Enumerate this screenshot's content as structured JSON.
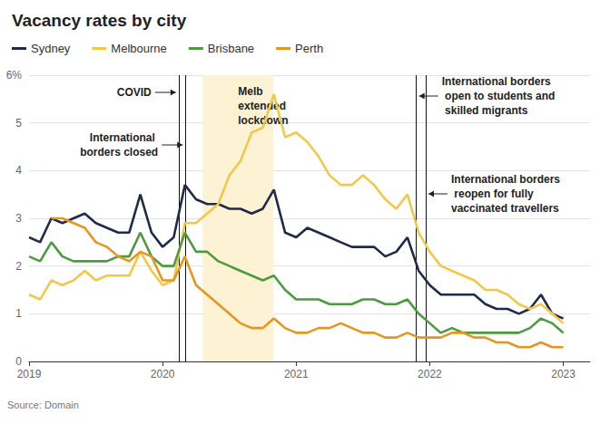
{
  "chart_data": {
    "type": "line",
    "title": "Vacancy rates by city",
    "source": "Source: Domain",
    "x": [
      2019,
      2019.083,
      2019.167,
      2019.25,
      2019.333,
      2019.417,
      2019.5,
      2019.583,
      2019.667,
      2019.75,
      2019.833,
      2019.917,
      2020,
      2020.083,
      2020.167,
      2020.25,
      2020.333,
      2020.417,
      2020.5,
      2020.583,
      2020.667,
      2020.75,
      2020.833,
      2020.917,
      2021,
      2021.083,
      2021.167,
      2021.25,
      2021.333,
      2021.417,
      2021.5,
      2021.583,
      2021.667,
      2021.75,
      2021.833,
      2021.917,
      2022,
      2022.083,
      2022.167,
      2022.25,
      2022.333,
      2022.417,
      2022.5,
      2022.583,
      2022.667,
      2022.75,
      2022.833,
      2022.917,
      2023
    ],
    "series": [
      {
        "name": "Sydney",
        "color": "#1f2a4d",
        "values": [
          2.6,
          2.5,
          3.0,
          2.9,
          3.0,
          3.1,
          2.9,
          2.8,
          2.7,
          2.7,
          3.5,
          2.7,
          2.4,
          2.6,
          3.7,
          3.4,
          3.3,
          3.3,
          3.2,
          3.2,
          3.1,
          3.2,
          3.6,
          2.7,
          2.6,
          2.8,
          2.7,
          2.6,
          2.5,
          2.4,
          2.4,
          2.4,
          2.2,
          2.3,
          2.6,
          1.9,
          1.6,
          1.4,
          1.4,
          1.4,
          1.4,
          1.2,
          1.1,
          1.1,
          1.0,
          1.1,
          1.4,
          1.0,
          0.9
        ]
      },
      {
        "name": "Melbourne",
        "color": "#f2c84b",
        "values": [
          1.4,
          1.3,
          1.7,
          1.6,
          1.7,
          1.9,
          1.7,
          1.8,
          1.8,
          1.8,
          2.3,
          1.9,
          1.6,
          1.7,
          2.9,
          2.9,
          3.1,
          3.3,
          3.9,
          4.2,
          4.8,
          4.9,
          5.6,
          4.7,
          4.8,
          4.6,
          4.3,
          3.9,
          3.7,
          3.7,
          3.9,
          3.7,
          3.4,
          3.2,
          3.5,
          2.7,
          2.3,
          2.0,
          1.9,
          1.8,
          1.7,
          1.5,
          1.5,
          1.4,
          1.2,
          1.1,
          1.2,
          1.0,
          0.8
        ]
      },
      {
        "name": "Brisbane",
        "color": "#4b9b3f",
        "values": [
          2.2,
          2.1,
          2.5,
          2.2,
          2.1,
          2.1,
          2.1,
          2.1,
          2.2,
          2.2,
          2.7,
          2.2,
          2.0,
          2.0,
          2.7,
          2.3,
          2.3,
          2.1,
          2.0,
          1.9,
          1.8,
          1.7,
          1.8,
          1.5,
          1.3,
          1.3,
          1.3,
          1.2,
          1.2,
          1.2,
          1.3,
          1.3,
          1.2,
          1.2,
          1.3,
          1.0,
          0.8,
          0.6,
          0.7,
          0.6,
          0.6,
          0.6,
          0.6,
          0.6,
          0.6,
          0.7,
          0.9,
          0.8,
          0.6
        ]
      },
      {
        "name": "Perth",
        "color": "#e8951f",
        "values": [
          null,
          null,
          3.0,
          3.0,
          2.9,
          2.8,
          2.5,
          2.4,
          2.2,
          2.1,
          2.3,
          2.2,
          1.7,
          1.7,
          2.2,
          1.6,
          1.4,
          1.2,
          1.0,
          0.8,
          0.7,
          0.7,
          0.9,
          0.7,
          0.6,
          0.6,
          0.7,
          0.7,
          0.8,
          0.7,
          0.6,
          0.6,
          0.5,
          0.5,
          0.6,
          0.5,
          0.5,
          0.5,
          0.6,
          0.6,
          0.5,
          0.5,
          0.4,
          0.4,
          0.3,
          0.3,
          0.4,
          0.3,
          0.3
        ]
      }
    ],
    "xlim": [
      2019,
      2023.2
    ],
    "xticks": [
      2019,
      2020,
      2021,
      2022,
      2023
    ],
    "ylim": [
      0,
      6
    ],
    "yticks": [
      0,
      1,
      2,
      3,
      4,
      5,
      {
        "value": 6,
        "label": "6%"
      }
    ],
    "grid": true,
    "legend": "top-left",
    "annotations": [
      {
        "text": "COVID",
        "x": 2020.12
      },
      {
        "text": "International borders closed",
        "x": 2020.17
      },
      {
        "text": "Melb extended lockdown",
        "x": [
          2020.3,
          2020.83
        ]
      },
      {
        "text": "International borders open to students and skilled migrants",
        "x": 2021.9
      },
      {
        "text": "International borders reopen for fully vaccinated travellers",
        "x": 2021.97
      }
    ]
  }
}
